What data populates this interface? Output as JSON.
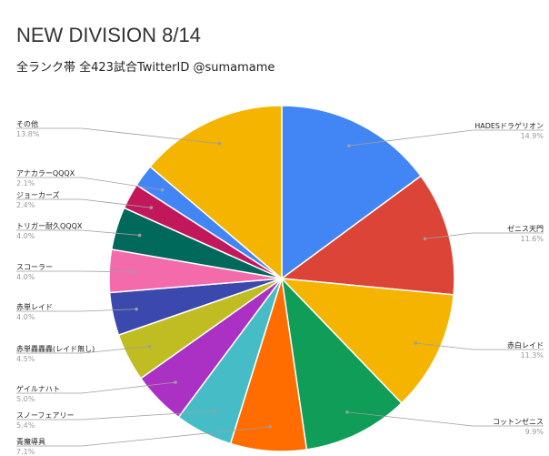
{
  "chart_data": {
    "type": "pie",
    "title": "NEW DIVISION 8/14",
    "subtitle": "全ランク帯 全423試合TwitterID @sumamame",
    "slices": [
      {
        "name": "HADESドラゲリオン",
        "pct_label": "14.9%",
        "value": 14.9,
        "color": "#4285f4"
      },
      {
        "name": "ゼニス天門",
        "pct_label": "11.6%",
        "value": 11.6,
        "color": "#db4437"
      },
      {
        "name": "赤白レイド",
        "pct_label": "11.3%",
        "value": 11.3,
        "color": "#f4b400"
      },
      {
        "name": "コットンゼニス",
        "pct_label": "9.9%",
        "value": 9.9,
        "color": "#0f9d58"
      },
      {
        "name": "青魔導具",
        "pct_label": "7.1%",
        "value": 7.1,
        "color": "#ff6d00"
      },
      {
        "name": "スノーフェアリー",
        "pct_label": "5.4%",
        "value": 5.4,
        "color": "#46bdc6"
      },
      {
        "name": "ゲイルナハト",
        "pct_label": "5.0%",
        "value": 5.0,
        "color": "#ab30c4"
      },
      {
        "name": "赤単轟轟轟(レイド無し)",
        "pct_label": "4.5%",
        "value": 4.5,
        "color": "#c0bd22"
      },
      {
        "name": "赤単レイド",
        "pct_label": "4.0%",
        "value": 4.0,
        "color": "#3b48ad"
      },
      {
        "name": "スコーラー",
        "pct_label": "4.0%",
        "value": 4.0,
        "color": "#f46bac"
      },
      {
        "name": "トリガー耐久QQQX",
        "pct_label": "4.0%",
        "value": 4.0,
        "color": "#00695c"
      },
      {
        "name": "ジョーカーズ",
        "pct_label": "2.4%",
        "value": 2.4,
        "color": "#c2185b"
      },
      {
        "name": "アナカラーQQQX",
        "pct_label": "2.1%",
        "value": 2.1,
        "color": "#4285f4"
      },
      {
        "name": "その他",
        "pct_label": "13.8%",
        "value": 13.8,
        "color": "#f4b400"
      }
    ],
    "legend": "none"
  }
}
